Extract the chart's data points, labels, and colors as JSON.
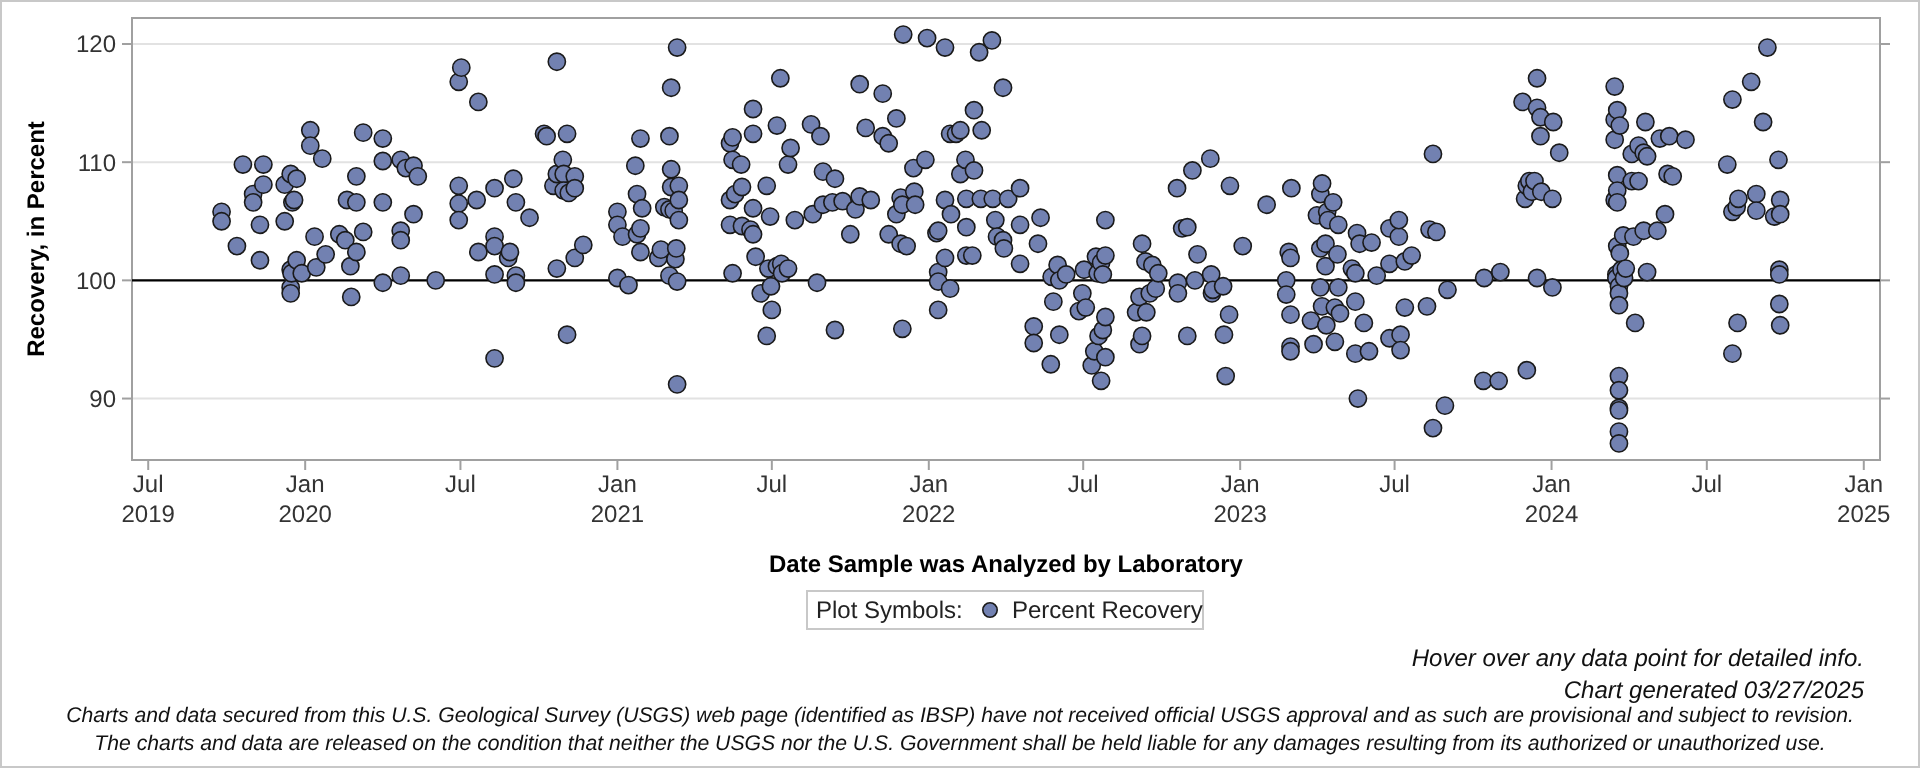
{
  "chart_data": {
    "type": "scatter",
    "xlabel": "Date Sample was Analyzed by Laboratory",
    "ylabel": "Recovery, in Percent",
    "legend_title": "Plot Symbols:",
    "legend": "bottom",
    "grid": "y",
    "marker": "circle",
    "xlim": [
      "2019-06-12",
      "2025-01-20"
    ],
    "xticks": [
      {
        "value": "2019-07-01",
        "label": "Jul\n2019"
      },
      {
        "value": "2020-01-01",
        "label": "Jan\n2020"
      },
      {
        "value": "2020-07-01",
        "label": "Jul"
      },
      {
        "value": "2021-01-01",
        "label": "Jan\n2021"
      },
      {
        "value": "2021-07-01",
        "label": "Jul"
      },
      {
        "value": "2022-01-01",
        "label": "Jan\n2022"
      },
      {
        "value": "2022-07-01",
        "label": "Jul"
      },
      {
        "value": "2023-01-01",
        "label": "Jan\n2023"
      },
      {
        "value": "2023-07-01",
        "label": "Jul"
      },
      {
        "value": "2024-01-01",
        "label": "Jan\n2024"
      },
      {
        "value": "2024-07-01",
        "label": "Jul"
      },
      {
        "value": "2025-01-01",
        "label": "Jan\n2025"
      }
    ],
    "ylim": [
      84.8,
      122.2
    ],
    "yticks": [
      90,
      100,
      110,
      120
    ],
    "ref_lines": [
      {
        "axis": "y",
        "value": 100,
        "color": "#000000"
      }
    ],
    "annotations": [
      "Hover over any data point for detailed info.",
      "Chart generated 03/27/2025",
      "Charts and data secured from this U.S. Geological Survey (USGS) web page (identified as IBSP) have not received official USGS approval and as such are provisional and subject to revision.",
      "The charts and data are released on the condition that neither the USGS nor the U.S. Government shall be held liable for any damages resulting from its authorized or unauthorized use."
    ],
    "series": [
      {
        "name": "Percent Recovery",
        "color": "#7281b1",
        "x": [
          "2019-09-25",
          "2019-09-25",
          "2019-10-13",
          "2019-10-20",
          "2019-11-01",
          "2019-11-01",
          "2019-11-09",
          "2019-11-09",
          "2019-11-13",
          "2019-11-13",
          "2019-12-08",
          "2019-12-08",
          "2019-12-15",
          "2019-12-15",
          "2019-12-15",
          "2019-12-15",
          "2019-12-16",
          "2019-12-17",
          "2019-12-19",
          "2019-12-22",
          "2019-12-22",
          "2019-12-28",
          "2020-01-07",
          "2020-01-07",
          "2020-01-12",
          "2020-01-14",
          "2020-01-21",
          "2020-01-25",
          "2020-02-10",
          "2020-02-17",
          "2020-02-19",
          "2020-02-23",
          "2020-02-24",
          "2020-03-01",
          "2020-03-01",
          "2020-03-01",
          "2020-03-09",
          "2020-03-09",
          "2020-04-01",
          "2020-04-01",
          "2020-04-01",
          "2020-04-01",
          "2020-04-22",
          "2020-04-22",
          "2020-04-22",
          "2020-04-22",
          "2020-04-28",
          "2020-05-07",
          "2020-05-07",
          "2020-05-12",
          "2020-06-02",
          "2020-06-29",
          "2020-07-02",
          "2020-06-29",
          "2020-06-29",
          "2020-06-29",
          "2020-07-20",
          "2020-07-22",
          "2020-07-22",
          "2020-08-10",
          "2020-08-10",
          "2020-08-10",
          "2020-08-10",
          "2020-08-10",
          "2020-08-26",
          "2020-08-28",
          "2020-09-01",
          "2020-09-04",
          "2020-09-04",
          "2020-09-04",
          "2020-09-20",
          "2020-10-07",
          "2020-10-10",
          "2020-10-18",
          "2020-10-22",
          "2020-10-22",
          "2020-10-22",
          "2020-10-29",
          "2020-10-30",
          "2020-10-30",
          "2020-11-03",
          "2020-11-03",
          "2020-11-05",
          "2020-11-12",
          "2020-11-12",
          "2020-11-12",
          "2020-11-22",
          "2021-01-01",
          "2021-01-01",
          "2021-01-01",
          "2021-01-07",
          "2021-01-14",
          "2021-01-22",
          "2021-01-24",
          "2021-01-24",
          "2021-01-28",
          "2021-01-28",
          "2021-01-28",
          "2021-01-30",
          "2021-02-18",
          "2021-02-21",
          "2021-02-25",
          "2021-03-03",
          "2021-03-03",
          "2021-03-03",
          "2021-03-05",
          "2021-03-05",
          "2021-03-05",
          "2021-03-08",
          "2021-03-10",
          "2021-03-11",
          "2021-03-12",
          "2021-03-12",
          "2021-03-12",
          "2021-03-14",
          "2021-03-14",
          "2021-03-14",
          "2021-05-13",
          "2021-05-13",
          "2021-05-13",
          "2021-05-16",
          "2021-05-16",
          "2021-05-16",
          "2021-05-19",
          "2021-05-26",
          "2021-05-27",
          "2021-05-27",
          "2021-06-06",
          "2021-06-09",
          "2021-06-09",
          "2021-06-09",
          "2021-06-09",
          "2021-06-12",
          "2021-06-18",
          "2021-06-25",
          "2021-06-25",
          "2021-06-27",
          "2021-06-29",
          "2021-06-30",
          "2021-07-01",
          "2021-07-07",
          "2021-07-07",
          "2021-07-11",
          "2021-07-12",
          "2021-07-13",
          "2021-07-20",
          "2021-07-20",
          "2021-07-23",
          "2021-07-28",
          "2021-08-16",
          "2021-08-18",
          "2021-08-23",
          "2021-08-27",
          "2021-08-30",
          "2021-08-30",
          "2021-09-13",
          "2021-09-13",
          "2021-09-10",
          "2021-09-22",
          "2021-10-01",
          "2021-10-07",
          "2021-10-12",
          "2021-10-12",
          "2021-10-19",
          "2021-10-25",
          "2021-11-08",
          "2021-11-08",
          "2021-11-15",
          "2021-11-15",
          "2021-11-24",
          "2021-11-24",
          "2021-11-29",
          "2021-11-29",
          "2021-12-01",
          "2021-12-01",
          "2021-12-06",
          "2021-12-02",
          "2021-12-14",
          "2021-12-15",
          "2021-12-16",
          "2021-12-28",
          "2021-12-30",
          "2022-01-10",
          "2022-01-12",
          "2022-01-12",
          "2022-01-12",
          "2022-01-12",
          "2022-01-20",
          "2022-01-20",
          "2022-01-20",
          "2022-01-26",
          "2022-01-26",
          "2022-01-27",
          "2022-02-02",
          "2022-02-07",
          "2022-02-07",
          "2022-02-13",
          "2022-02-14",
          "2022-02-14",
          "2022-02-14",
          "2022-02-21",
          "2022-02-23",
          "2022-02-23",
          "2022-03-01",
          "2022-03-03",
          "2022-03-04",
          "2022-03-16",
          "2022-03-17",
          "2022-03-20",
          "2022-03-22",
          "2022-03-29",
          "2022-03-29",
          "2022-03-30",
          "2022-04-04",
          "2022-04-18",
          "2022-04-18",
          "2022-04-18",
          "2022-05-09",
          "2022-05-12",
          "2022-05-04",
          "2022-05-04",
          "2022-05-25",
          "2022-05-27",
          "2022-05-24",
          "2022-06-01",
          "2022-06-03",
          "2022-06-03",
          "2022-06-11",
          "2022-06-30",
          "2022-06-26",
          "2022-07-02",
          "2022-07-04",
          "2022-07-11",
          "2022-07-14",
          "2022-07-16",
          "2022-07-18",
          "2022-07-19",
          "2022-07-22",
          "2022-07-22",
          "2022-07-24",
          "2022-07-24",
          "2022-07-27",
          "2022-07-27",
          "2022-07-27",
          "2022-07-27",
          "2022-09-01",
          "2022-09-05",
          "2022-09-05",
          "2022-09-08",
          "2022-09-08",
          "2022-09-12",
          "2022-09-13",
          "2022-09-17",
          "2022-09-20",
          "2022-09-24",
          "2022-09-27",
          "2022-10-19",
          "2022-10-20",
          "2022-10-20",
          "2022-10-25",
          "2022-10-31",
          "2022-10-31",
          "2022-11-06",
          "2022-11-09",
          "2022-11-12",
          "2022-11-27",
          "2022-11-28",
          "2022-11-29",
          "2022-11-30",
          "2022-12-12",
          "2022-12-13",
          "2022-12-15",
          "2022-12-19",
          "2022-12-20",
          "2023-01-04",
          "2023-02-01",
          "2023-02-24",
          "2023-02-24",
          "2023-02-27",
          "2023-03-01",
          "2023-03-01",
          "2023-03-01",
          "2023-03-01",
          "2023-03-02",
          "2023-03-25",
          "2023-03-28",
          "2023-04-01",
          "2023-04-05",
          "2023-04-07",
          "2023-04-05",
          "2023-04-05",
          "2023-04-07",
          "2023-04-11",
          "2023-04-11",
          "2023-04-12",
          "2023-04-13",
          "2023-04-14",
          "2023-04-20",
          "2023-04-22",
          "2023-04-22",
          "2023-04-25",
          "2023-04-26",
          "2023-04-26",
          "2023-04-28",
          "2023-05-12",
          "2023-05-16",
          "2023-05-16",
          "2023-05-18",
          "2023-05-19",
          "2023-05-21",
          "2023-05-26",
          "2023-05-16",
          "2023-06-01",
          "2023-06-04",
          "2023-06-10",
          "2023-06-25",
          "2023-06-25",
          "2023-06-25",
          "2023-07-06",
          "2023-07-06",
          "2023-07-08",
          "2023-07-08",
          "2023-07-13",
          "2023-07-13",
          "2023-07-21",
          "2023-08-08",
          "2023-08-11",
          "2023-08-15",
          "2023-08-15",
          "2023-08-19",
          "2023-08-29",
          "2023-09-01",
          "2023-10-13",
          "2023-10-14",
          "2023-10-31",
          "2023-11-02",
          "2023-11-28",
          "2023-12-01",
          "2023-12-03",
          "2023-12-03",
          "2023-12-06",
          "2023-12-09",
          "2023-12-12",
          "2023-12-15",
          "2023-12-15",
          "2023-12-15",
          "2023-12-19",
          "2023-12-19",
          "2023-12-20",
          "2024-01-02",
          "2024-01-03",
          "2024-01-02",
          "2024-01-10",
          "2024-03-15",
          "2024-03-15",
          "2024-03-15",
          "2024-03-15",
          "2024-03-17",
          "2024-03-17",
          "2024-03-18",
          "2024-03-18",
          "2024-03-18",
          "2024-03-18",
          "2024-03-18",
          "2024-03-20",
          "2024-03-20",
          "2024-03-20",
          "2024-03-21",
          "2024-03-21",
          "2024-03-20",
          "2024-03-20",
          "2024-03-20",
          "2024-03-20",
          "2024-03-20",
          "2024-03-20",
          "2024-03-23",
          "2024-03-26",
          "2024-03-25",
          "2024-03-28",
          "2024-04-04",
          "2024-04-04",
          "2024-04-08",
          "2024-04-06",
          "2024-04-12",
          "2024-04-12",
          "2024-04-18",
          "2024-04-18",
          "2024-04-20",
          "2024-04-22",
          "2024-04-22",
          "2024-05-04",
          "2024-05-07",
          "2024-05-13",
          "2024-05-16",
          "2024-05-18",
          "2024-05-22",
          "2024-06-06",
          "2024-07-25",
          "2024-07-31",
          "2024-07-31",
          "2024-07-31",
          "2024-08-05",
          "2024-08-06",
          "2024-08-07",
          "2024-08-22",
          "2024-08-28",
          "2024-08-28",
          "2024-09-05",
          "2024-09-10",
          "2024-09-18",
          "2024-09-23",
          "2024-09-24",
          "2024-09-24",
          "2024-09-24",
          "2024-09-25",
          "2024-09-25",
          "2024-09-25"
        ],
        "values": [
          105.8,
          105.0,
          102.9,
          109.8,
          107.3,
          106.6,
          104.7,
          101.7,
          109.8,
          108.1,
          108.1,
          105.0,
          109.0,
          100.9,
          99.4,
          98.9,
          100.6,
          106.6,
          106.8,
          108.6,
          101.7,
          100.6,
          112.7,
          111.4,
          103.7,
          101.1,
          110.3,
          102.2,
          103.9,
          103.4,
          106.8,
          101.2,
          98.6,
          106.6,
          108.8,
          102.4,
          112.5,
          104.1,
          112.0,
          110.1,
          106.6,
          99.8,
          110.2,
          104.2,
          103.4,
          100.4,
          109.5,
          109.7,
          105.6,
          108.8,
          100.0,
          116.8,
          118.0,
          108.0,
          106.5,
          105.1,
          106.8,
          115.1,
          102.4,
          107.8,
          103.7,
          102.9,
          100.5,
          93.4,
          101.9,
          102.4,
          108.6,
          106.6,
          100.4,
          99.8,
          105.3,
          112.4,
          112.2,
          108.0,
          118.5,
          109.0,
          101.0,
          110.2,
          109.0,
          107.6,
          112.4,
          95.4,
          107.4,
          108.8,
          107.8,
          101.9,
          103.0,
          105.8,
          104.7,
          100.2,
          103.7,
          99.6,
          109.7,
          107.3,
          103.9,
          112.0,
          104.4,
          102.4,
          106.1,
          101.9,
          102.6,
          106.2,
          112.2,
          106.0,
          100.4,
          116.3,
          109.4,
          107.9,
          105.9,
          101.8,
          102.7,
          119.7,
          99.9,
          91.2,
          108.0,
          106.8,
          105.1,
          111.6,
          106.8,
          104.7,
          112.1,
          110.2,
          100.6,
          107.3,
          109.8,
          107.9,
          104.6,
          104.3,
          103.9,
          114.5,
          112.4,
          106.1,
          102.0,
          98.9,
          108.0,
          95.3,
          101.0,
          105.4,
          99.5,
          97.5,
          113.1,
          101.2,
          117.1,
          101.4,
          100.6,
          109.8,
          101.0,
          111.2,
          105.1,
          113.2,
          105.6,
          99.8,
          112.2,
          109.2,
          106.4,
          108.6,
          95.8,
          106.6,
          106.7,
          103.9,
          106.0,
          116.6,
          107.1,
          112.9,
          106.8,
          115.8,
          112.2,
          103.9,
          111.6,
          113.7,
          105.6,
          107.0,
          103.1,
          106.4,
          95.9,
          102.9,
          120.8,
          109.5,
          107.5,
          106.4,
          110.2,
          120.5,
          104.0,
          104.2,
          100.7,
          99.9,
          97.5,
          119.7,
          106.8,
          101.9,
          112.4,
          99.3,
          105.6,
          112.4,
          112.7,
          109.0,
          110.2,
          106.9,
          104.5,
          102.1,
          102.1,
          114.4,
          109.3,
          119.3,
          106.9,
          112.7,
          120.3,
          106.9,
          105.1,
          103.7,
          116.3,
          103.4,
          102.7,
          106.9,
          104.7,
          107.8,
          101.4,
          103.1,
          105.3,
          96.1,
          94.7,
          100.3,
          98.2,
          92.9,
          101.3,
          100.0,
          95.4,
          100.5,
          98.9,
          97.4,
          100.9,
          97.7,
          92.8,
          94.0,
          102.0,
          100.6,
          95.3,
          101.5,
          91.5,
          100.5,
          95.8,
          102.1,
          96.9,
          105.1,
          93.5,
          97.3,
          98.6,
          94.6,
          103.1,
          95.3,
          101.6,
          97.3,
          98.9,
          101.3,
          99.3,
          100.6,
          107.8,
          99.8,
          98.9,
          104.4,
          104.5,
          95.3,
          109.3,
          100.0,
          102.2,
          110.3,
          100.5,
          98.9,
          99.2,
          99.5,
          95.4,
          91.9,
          97.1,
          108.0,
          102.9,
          106.4,
          100.0,
          98.8,
          102.4,
          101.9,
          97.1,
          94.4,
          94.0,
          107.8,
          96.6,
          94.6,
          105.5,
          107.3,
          108.2,
          102.7,
          99.4,
          97.8,
          103.1,
          101.2,
          96.2,
          105.8,
          105.1,
          106.6,
          97.7,
          94.8,
          102.2,
          104.7,
          99.4,
          97.2,
          101.0,
          100.6,
          98.2,
          104.0,
          90.0,
          103.1,
          96.4,
          93.8,
          94.0,
          103.2,
          100.4,
          104.4,
          101.4,
          95.1,
          103.7,
          105.1,
          95.4,
          94.1,
          97.7,
          101.6,
          102.1,
          97.8,
          104.3,
          110.7,
          87.5,
          104.1,
          89.4,
          99.2,
          91.5,
          100.2,
          91.5,
          100.7,
          115.1,
          106.9,
          92.4,
          108.0,
          108.4,
          107.5,
          108.4,
          117.1,
          114.6,
          100.2,
          113.8,
          112.2,
          107.5,
          106.9,
          113.4,
          99.4,
          110.8,
          113.6,
          111.9,
          106.8,
          116.4,
          100.5,
          100.2,
          114.4,
          108.9,
          107.6,
          106.6,
          102.9,
          99.5,
          98.9,
          97.9,
          113.1,
          102.3,
          91.9,
          90.7,
          89.2,
          89.0,
          87.2,
          86.2,
          100.9,
          100.2,
          103.8,
          101.0,
          110.7,
          108.4,
          96.4,
          103.7,
          111.4,
          108.4,
          110.8,
          104.2,
          113.4,
          100.7,
          110.5,
          104.2,
          112.0,
          105.6,
          109.0,
          112.2,
          108.8,
          111.9,
          109.8,
          115.3,
          105.8,
          93.8,
          106.2,
          96.4,
          106.9,
          116.8,
          107.3,
          105.9,
          113.4,
          119.7,
          105.4,
          110.2,
          100.9,
          100.5,
          98.0,
          106.8,
          105.6,
          96.2
        ]
      }
    ]
  }
}
